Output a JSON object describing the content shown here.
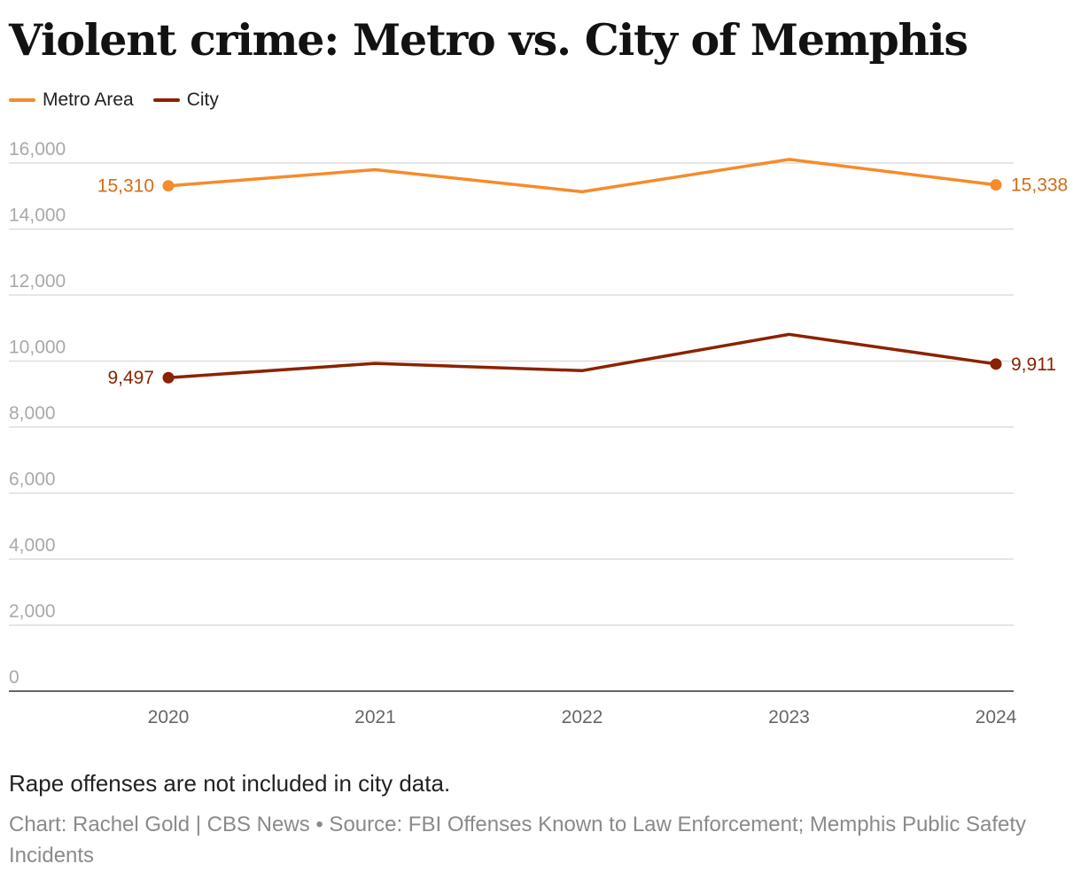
{
  "title": "Violent crime: Metro vs. City of Memphis",
  "note": "Rape offenses are not included in city data.",
  "source": "Chart: Rachel Gold | CBS News • Source: FBI Offenses Known to Law Enforcement; Memphis Public Safety Incidents",
  "chart_data": {
    "type": "line",
    "title": "Violent crime: Metro vs. City of Memphis",
    "xlabel": "",
    "ylabel": "",
    "x": [
      "2020",
      "2021",
      "2022",
      "2023",
      "2024"
    ],
    "ylim": [
      0,
      16000
    ],
    "yticks": [
      "0",
      "2,000",
      "4,000",
      "6,000",
      "8,000",
      "10,000",
      "12,000",
      "14,000",
      "16,000"
    ],
    "ytick_values": [
      0,
      2000,
      4000,
      6000,
      8000,
      10000,
      12000,
      14000,
      16000
    ],
    "grid": true,
    "legend": "top-left",
    "series": [
      {
        "name": "Metro Area",
        "color": "#F68B2A",
        "label_color": "#D86B14",
        "values": [
          15310,
          15800,
          15130,
          16110,
          15338
        ],
        "first_label": "15,310",
        "last_label": "15,338"
      },
      {
        "name": "City",
        "color": "#8A2300",
        "label_color": "#8A2300",
        "values": [
          9497,
          9930,
          9710,
          10810,
          9911
        ],
        "first_label": "9,497",
        "last_label": "9,911"
      }
    ]
  }
}
